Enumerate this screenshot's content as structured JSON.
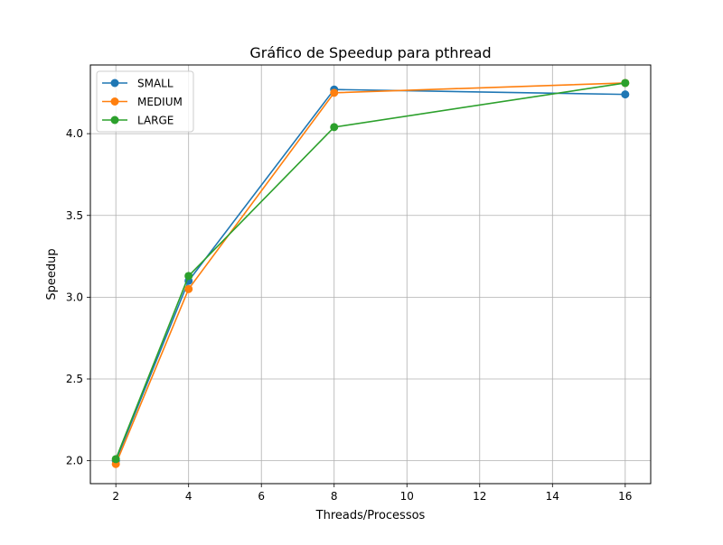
{
  "chart_data": {
    "type": "line",
    "title": "Gráfico de Speedup para pthread",
    "xlabel": "Threads/Processos",
    "ylabel": "Speedup",
    "xlim": [
      1.3,
      16.7
    ],
    "ylim": [
      1.86,
      4.42
    ],
    "xticks": [
      2,
      4,
      6,
      8,
      10,
      12,
      14,
      16
    ],
    "yticks": [
      2.0,
      2.5,
      3.0,
      3.5,
      4.0
    ],
    "xtick_labels": [
      "2",
      "4",
      "6",
      "8",
      "10",
      "12",
      "14",
      "16"
    ],
    "ytick_labels": [
      "2.0",
      "2.5",
      "3.0",
      "3.5",
      "4.0"
    ],
    "grid": true,
    "legend_position": "top-left",
    "x": [
      2,
      4,
      8,
      16
    ],
    "series": [
      {
        "name": "SMALL",
        "values": [
          2.0,
          3.1,
          4.27,
          4.24
        ],
        "color": "#1f77b4"
      },
      {
        "name": "MEDIUM",
        "values": [
          1.98,
          3.05,
          4.25,
          4.31
        ],
        "color": "#ff7f0e"
      },
      {
        "name": "LARGE",
        "values": [
          2.01,
          3.13,
          4.04,
          4.31
        ],
        "color": "#2ca02c"
      }
    ]
  }
}
